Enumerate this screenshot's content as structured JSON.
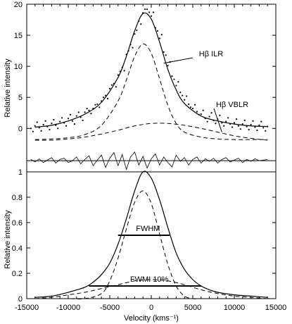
{
  "chart_data": [
    {
      "type": "line",
      "panel": "top",
      "ylabel": "Relative intensity",
      "xlim": [
        -15000,
        15000
      ],
      "ylim": [
        -7,
        20
      ],
      "y_ticks": [
        0,
        5,
        10,
        15,
        20
      ],
      "grid": false,
      "legend": "none",
      "series": [
        {
          "style": "solid",
          "x": [
            -14000,
            -12000,
            -10000,
            -8000,
            -6000,
            -4000,
            -3000,
            -2000,
            -1000,
            0,
            1000,
            2000,
            3000,
            4000,
            6000,
            8000,
            10000,
            12000,
            14000
          ],
          "y": [
            0.2,
            0.5,
            1.2,
            2.3,
            4.2,
            8.2,
            11.6,
            15.7,
            18.5,
            17.6,
            13.9,
            9.5,
            6.2,
            4.0,
            2.0,
            1.2,
            0.7,
            0.4,
            0.3
          ]
        },
        {
          "style": "dashed",
          "x": [
            -14000,
            -12000,
            -10000,
            -8000,
            -6000,
            -4000,
            -3000,
            -2000,
            -1000,
            0,
            1000,
            2000,
            3000,
            4000,
            6000,
            8000,
            10000,
            12000,
            14000
          ],
          "y": [
            -1.8,
            -1.7,
            -1.5,
            -1.0,
            0.5,
            4.4,
            7.8,
            11.6,
            13.6,
            12.1,
            8.0,
            3.7,
            0.8,
            -0.6,
            -1.4,
            -1.7,
            -1.8,
            -1.8,
            -1.8
          ]
        },
        {
          "style": "dashed",
          "x": [
            -14000,
            -12000,
            -10000,
            -8000,
            -6000,
            -4000,
            -2000,
            0,
            2000,
            4000,
            6000,
            8000,
            10000,
            12000,
            14000
          ],
          "y": [
            -1.9,
            -1.9,
            -1.7,
            -1.4,
            -0.9,
            -0.3,
            0.4,
            0.8,
            0.8,
            0.5,
            0.0,
            -0.6,
            -1.2,
            -1.6,
            -1.9
          ]
        },
        {
          "style": "points",
          "x": [
            -14500,
            -14000,
            -13500,
            -13000,
            -12500,
            -12000,
            -11500,
            -11000,
            -10500,
            -10000,
            -9500,
            -9000,
            -8500,
            -8000,
            -7500,
            -7000,
            -6500,
            -6000,
            -5500,
            -5000,
            -4500,
            -4000,
            -3500,
            -3000,
            -2500,
            -2000,
            -1500,
            -1000,
            -500,
            0,
            500,
            1000,
            1500,
            2000,
            2500,
            3000,
            3500,
            4000,
            4500,
            5000,
            5500,
            6000,
            6500,
            7000,
            7500,
            8000,
            8500,
            9000,
            9500,
            10000,
            10500,
            11000,
            11500,
            12000,
            12500,
            13000,
            13500,
            14000
          ],
          "y": [
            0.0,
            0.4,
            0.1,
            0.6,
            0.3,
            0.8,
            0.5,
            1.1,
            0.9,
            1.6,
            1.2,
            2.0,
            1.8,
            2.6,
            2.9,
            3.2,
            3.9,
            4.4,
            5.3,
            6.4,
            7.2,
            8.6,
            9.8,
            11.9,
            13.5,
            15.2,
            17.3,
            18.6,
            19.2,
            18.1,
            16.2,
            14.5,
            12.3,
            10.1,
            8.4,
            6.9,
            5.8,
            4.6,
            3.9,
            3.2,
            2.7,
            2.3,
            1.6,
            1.9,
            1.3,
            1.5,
            0.9,
            1.1,
            0.7,
            0.9,
            0.4,
            0.7,
            0.3,
            0.6,
            0.2,
            0.5,
            0.1,
            0.3
          ]
        },
        {
          "style": "residual",
          "y_baseline": -5.2,
          "x": [
            -14500,
            -14000,
            -13500,
            -13000,
            -12500,
            -12000,
            -11500,
            -11000,
            -10500,
            -10000,
            -9500,
            -9000,
            -8500,
            -8000,
            -7500,
            -7000,
            -6500,
            -6000,
            -5500,
            -5000,
            -4500,
            -4000,
            -3500,
            -3000,
            -2500,
            -2000,
            -1500,
            -1000,
            -500,
            0,
            500,
            1000,
            1500,
            2000,
            2500,
            3000,
            3500,
            4000,
            4500,
            5000,
            5500,
            6000,
            6500,
            7000,
            7500,
            8000,
            8500,
            9000,
            9500,
            10000,
            10500,
            11000,
            11500,
            12000,
            12500,
            13000,
            13500,
            14000
          ],
          "y": [
            -5.0,
            -5.4,
            -4.9,
            -5.5,
            -5.1,
            -4.7,
            -5.6,
            -5.0,
            -4.8,
            -5.5,
            -5.2,
            -4.6,
            -5.7,
            -5.0,
            -4.4,
            -6.0,
            -5.1,
            -4.3,
            -6.3,
            -4.8,
            -3.9,
            -6.0,
            -4.2,
            -6.6,
            -4.6,
            -3.8,
            -5.9,
            -4.5,
            -6.4,
            -4.9,
            -4.1,
            -5.9,
            -4.6,
            -5.5,
            -6.2,
            -4.3,
            -5.3,
            -4.7,
            -5.9,
            -5.0,
            -4.6,
            -5.6,
            -4.9,
            -5.3,
            -4.8,
            -5.6,
            -5.0,
            -4.7,
            -5.4,
            -5.1,
            -4.8,
            -5.5,
            -5.0,
            -5.3,
            -4.9,
            -5.2,
            -5.1,
            -5.0
          ]
        }
      ],
      "annotations": [
        {
          "text": "Hβ ILR",
          "target_x": 1500,
          "target_y": 10.5
        },
        {
          "text": "Hβ VBLR",
          "target_x": 8500,
          "target_y": -0.6
        }
      ]
    },
    {
      "type": "line",
      "panel": "bottom",
      "xlabel": "Velocity (kms⁻¹)",
      "ylabel": "Relative intensity",
      "xlim": [
        -15000,
        15000
      ],
      "ylim": [
        0,
        1
      ],
      "x_ticks": [
        -15000,
        -10000,
        -5000,
        0,
        5000,
        10000,
        15000
      ],
      "y_ticks": [
        0,
        0.2,
        0.4,
        0.6,
        0.8,
        1
      ],
      "grid": false,
      "legend": "none",
      "series": [
        {
          "style": "solid",
          "x": [
            -14000,
            -12000,
            -10000,
            -8000,
            -7000,
            -6000,
            -5000,
            -4000,
            -3000,
            -2000,
            -1000,
            0,
            1000,
            2000,
            3000,
            4000,
            5000,
            6000,
            7000,
            8000,
            10000,
            12000,
            14000
          ],
          "y": [
            0.01,
            0.02,
            0.05,
            0.09,
            0.13,
            0.19,
            0.28,
            0.43,
            0.63,
            0.85,
            1.0,
            0.95,
            0.78,
            0.56,
            0.36,
            0.23,
            0.15,
            0.1,
            0.07,
            0.05,
            0.03,
            0.02,
            0.01
          ]
        },
        {
          "style": "dashed",
          "x": [
            -14000,
            -10000,
            -8000,
            -6000,
            -5000,
            -4000,
            -3000,
            -2000,
            -1000,
            0,
            1000,
            2000,
            3000,
            4000,
            5000,
            6000,
            8000,
            10000,
            14000
          ],
          "y": [
            0.0,
            0.0,
            0.0,
            0.04,
            0.14,
            0.32,
            0.55,
            0.76,
            0.85,
            0.75,
            0.51,
            0.27,
            0.1,
            0.02,
            0.0,
            0.0,
            0.0,
            0.0,
            0.0
          ]
        },
        {
          "style": "dashed",
          "x": [
            -14000,
            -12000,
            -10000,
            -8000,
            -6000,
            -4000,
            -2000,
            0,
            2000,
            4000,
            6000,
            8000,
            10000,
            12000,
            14000
          ],
          "y": [
            0.0,
            0.01,
            0.03,
            0.05,
            0.08,
            0.11,
            0.14,
            0.15,
            0.14,
            0.11,
            0.07,
            0.04,
            0.02,
            0.01,
            0.0
          ]
        }
      ],
      "width_markers": [
        {
          "label": "FWHM",
          "x_start": -4000,
          "x_end": 2200,
          "y": 0.5
        },
        {
          "label": "FWMI 10%",
          "x_start": -7500,
          "x_end": 6000,
          "y": 0.1
        }
      ]
    }
  ]
}
